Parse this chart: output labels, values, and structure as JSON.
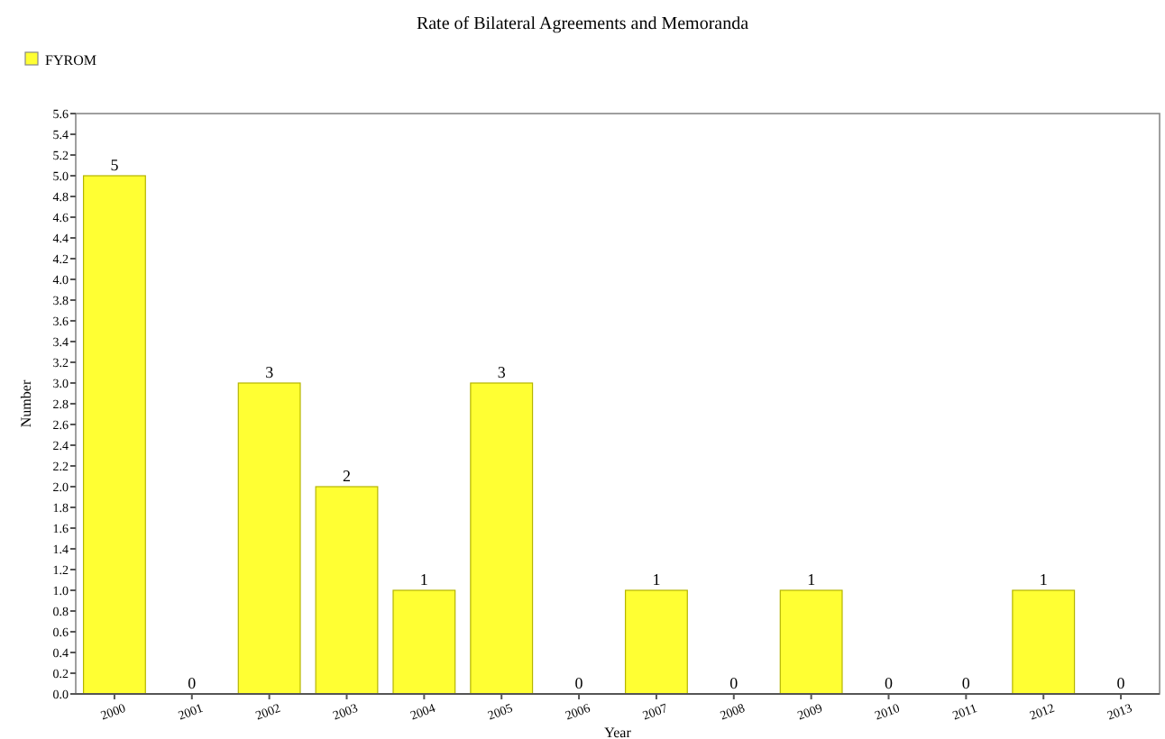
{
  "chart_data": {
    "type": "bar",
    "title": "Rate of Bilateral Agreements and Memoranda",
    "xlabel": "Year",
    "ylabel": "Number",
    "categories": [
      "2000",
      "2001",
      "2002",
      "2003",
      "2004",
      "2005",
      "2006",
      "2007",
      "2008",
      "2009",
      "2010",
      "2011",
      "2012",
      "2013"
    ],
    "series": [
      {
        "name": "FYROM",
        "color": "#ffff33",
        "values": [
          5,
          0,
          3,
          2,
          1,
          3,
          0,
          1,
          0,
          1,
          0,
          0,
          1,
          0
        ]
      }
    ],
    "ylim": [
      0,
      5.6
    ],
    "yticks": [
      {
        "value": 0,
        "label": "0.0"
      },
      0.2,
      0.4,
      0.6,
      0.8,
      {
        "value": 1,
        "label": "1.0"
      },
      1.2,
      1.4,
      1.6,
      1.8,
      {
        "value": 2,
        "label": "2.0"
      },
      2.2,
      2.4,
      2.6,
      2.8,
      {
        "value": 3,
        "label": "3.0"
      },
      3.2,
      3.4,
      3.6,
      3.8,
      {
        "value": 4,
        "label": "4.0"
      },
      4.2,
      4.4,
      4.6,
      4.8,
      {
        "value": 5,
        "label": "5.0"
      },
      5.2,
      5.4,
      5.6
    ],
    "data_labels": true,
    "legend": "top left",
    "grid": false
  }
}
